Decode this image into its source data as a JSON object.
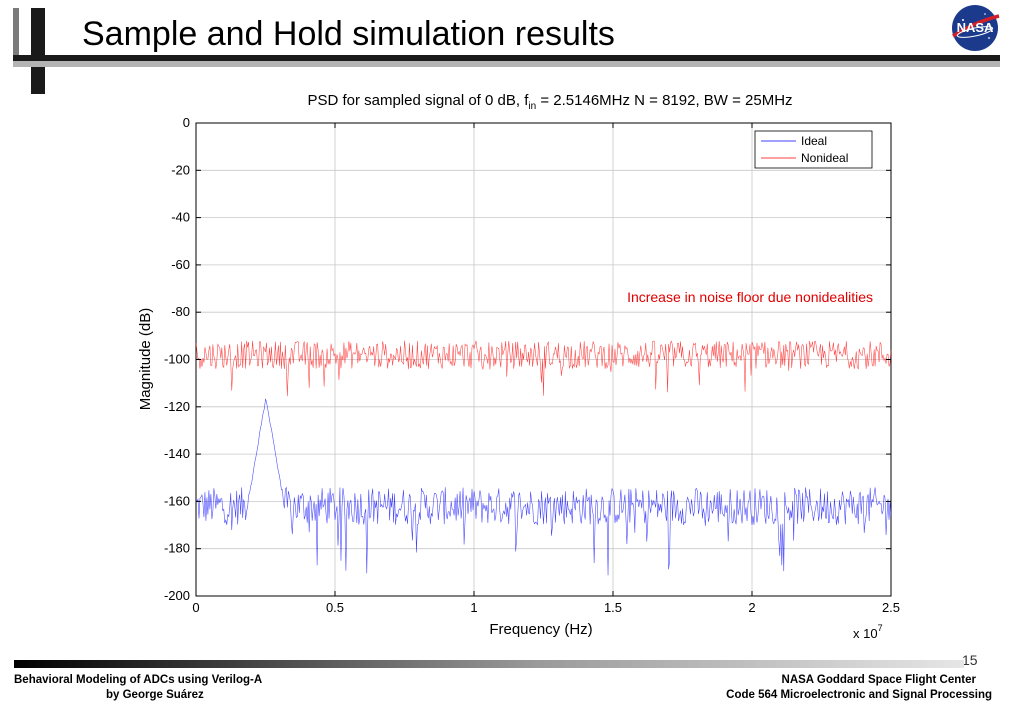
{
  "slide": {
    "title": "Sample and Hold simulation results",
    "page_number": "15",
    "footer_left_line1": "Behavioral Modeling of ADCs using Verilog-A",
    "footer_left_line2": "by George Suárez",
    "footer_right_line1": "NASA Goddard Space Flight Center",
    "footer_right_line2": "Code 564 Microelectronic and Signal Processing",
    "logo_text": "NASA"
  },
  "chart_data": {
    "type": "line",
    "title_prefix": "PSD for sampled signal of 0 dB, f",
    "title_sub": "in",
    "title_suffix": " = 2.5146MHz N = 8192, BW = 25MHz",
    "xlabel": "Frequency (Hz)",
    "ylabel": "Magnitude (dB)",
    "x_multiplier": "x 10",
    "x_multiplier_exp": "7",
    "xlim": [
      0,
      2.5
    ],
    "ylim": [
      -200,
      0
    ],
    "xticks": [
      0,
      0.5,
      1,
      1.5,
      2,
      2.5
    ],
    "xtick_labels": [
      "0",
      "0.5",
      "1",
      "1.5",
      "2",
      "2.5"
    ],
    "yticks": [
      0,
      -20,
      -40,
      -60,
      -80,
      -100,
      -120,
      -140,
      -160,
      -180,
      -200
    ],
    "ytick_labels": [
      "0",
      "-20",
      "-40",
      "-60",
      "-80",
      "-100",
      "-120",
      "-140",
      "-160",
      "-180",
      "-200"
    ],
    "grid": true,
    "legend_placement": "top-right",
    "series": [
      {
        "name": "Ideal",
        "color": "#0000ff",
        "noise_floor_db": -162,
        "spread_db": 8,
        "peak_x": 0.2515,
        "peak_db": -116
      },
      {
        "name": "Nonideal",
        "color": "#ff0000",
        "noise_floor_db": -98,
        "spread_db": 6
      }
    ],
    "annotation": "Increase in noise floor due nonidealities",
    "annotation_color": "#e00000"
  }
}
